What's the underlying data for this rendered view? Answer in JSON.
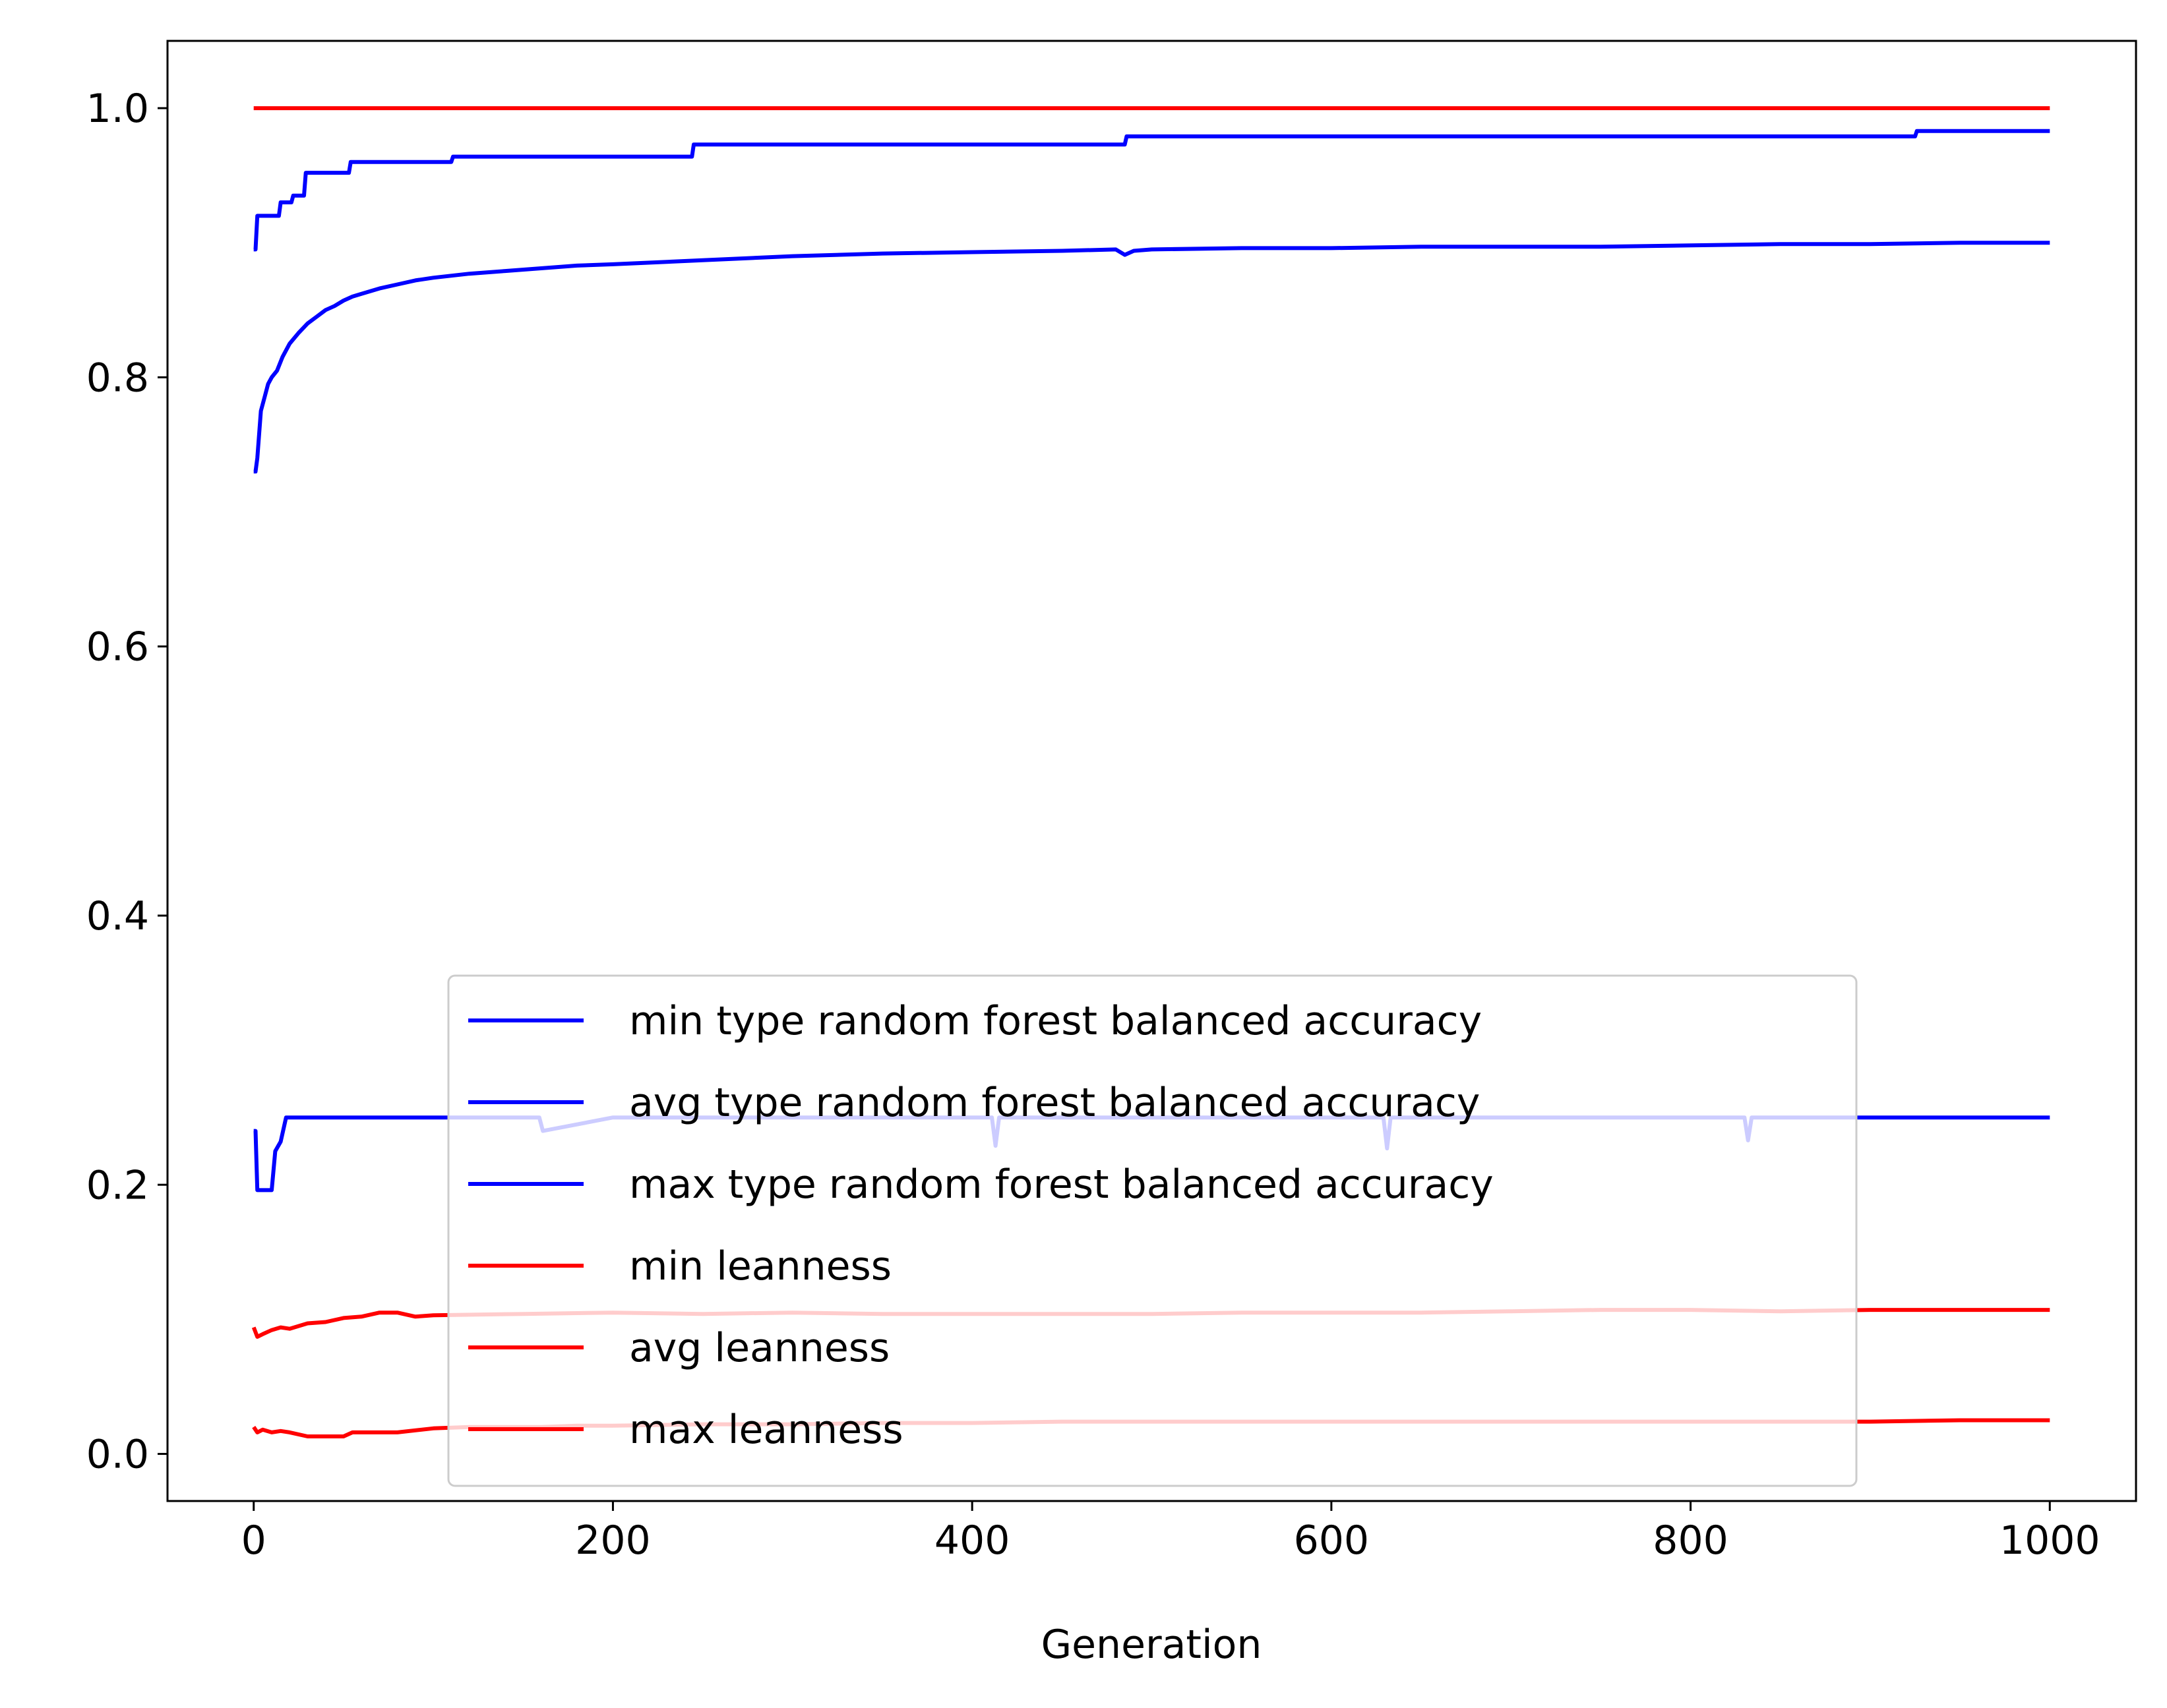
{
  "chart_data": {
    "type": "line",
    "title": "",
    "xlabel": "Generation",
    "ylabel": "",
    "xlim": [
      -48,
      1048
    ],
    "ylim": [
      -0.035,
      1.05
    ],
    "xticks": [
      0,
      200,
      400,
      600,
      800,
      1000
    ],
    "xtick_labels": [
      "0",
      "200",
      "400",
      "600",
      "800",
      "1000"
    ],
    "yticks": [
      0.0,
      0.2,
      0.4,
      0.6,
      0.8,
      1.0
    ],
    "ytick_labels": [
      "0.0",
      "0.2",
      "0.4",
      "0.6",
      "0.8",
      "1.0"
    ],
    "grid": false,
    "legend_position": "lower center",
    "series": [
      {
        "name": "min type random forest balanced accuracy",
        "color": "#0000ff",
        "x": [
          0,
          1,
          2,
          3,
          5,
          10,
          12,
          15,
          18,
          30,
          60,
          100,
          150,
          159,
          161,
          200,
          300,
          409,
          411,
          413,
          415,
          500,
          600,
          627,
          629,
          631,
          633,
          700,
          800,
          828,
          830,
          832,
          834,
          900,
          1000
        ],
        "y": [
          0.24,
          0.24,
          0.196,
          0.196,
          0.196,
          0.196,
          0.225,
          0.232,
          0.25,
          0.25,
          0.25,
          0.25,
          0.25,
          0.25,
          0.24,
          0.25,
          0.25,
          0.25,
          0.25,
          0.229,
          0.25,
          0.25,
          0.25,
          0.25,
          0.25,
          0.227,
          0.25,
          0.25,
          0.25,
          0.25,
          0.25,
          0.233,
          0.25,
          0.25,
          0.25
        ]
      },
      {
        "name": "avg type random forest balanced accuracy",
        "color": "#0000ff",
        "x": [
          0,
          1,
          2,
          4,
          6,
          8,
          10,
          13,
          16,
          20,
          25,
          30,
          35,
          40,
          45,
          50,
          55,
          60,
          70,
          80,
          90,
          100,
          120,
          140,
          160,
          180,
          200,
          250,
          300,
          350,
          400,
          450,
          480,
          485,
          490,
          500,
          550,
          600,
          650,
          700,
          750,
          800,
          850,
          900,
          950,
          1000
        ],
        "y": [
          0.73,
          0.73,
          0.74,
          0.775,
          0.785,
          0.795,
          0.8,
          0.805,
          0.815,
          0.825,
          0.833,
          0.84,
          0.845,
          0.85,
          0.853,
          0.857,
          0.86,
          0.862,
          0.866,
          0.869,
          0.872,
          0.874,
          0.877,
          0.879,
          0.881,
          0.883,
          0.884,
          0.887,
          0.89,
          0.892,
          0.893,
          0.894,
          0.895,
          0.891,
          0.894,
          0.895,
          0.896,
          0.896,
          0.897,
          0.897,
          0.897,
          0.898,
          0.899,
          0.899,
          0.9,
          0.9
        ]
      },
      {
        "name": "max type random forest balanced accuracy",
        "color": "#0000ff",
        "x": [
          0,
          1,
          2,
          3,
          14,
          15,
          21,
          22,
          28,
          29,
          53,
          54,
          110,
          111,
          244,
          245,
          485,
          486,
          925,
          926,
          1000
        ],
        "y": [
          0.895,
          0.895,
          0.92,
          0.92,
          0.92,
          0.93,
          0.93,
          0.935,
          0.935,
          0.952,
          0.952,
          0.96,
          0.96,
          0.964,
          0.964,
          0.973,
          0.973,
          0.979,
          0.979,
          0.983,
          0.983
        ]
      },
      {
        "name": "min leanness",
        "color": "#ff0000",
        "x": [
          0,
          2,
          5,
          10,
          15,
          20,
          30,
          40,
          50,
          55,
          60,
          80,
          100,
          120,
          140,
          160,
          180,
          200,
          250,
          300,
          350,
          400,
          450,
          500,
          600,
          700,
          800,
          900,
          950,
          1000
        ],
        "y": [
          0.02,
          0.016,
          0.018,
          0.016,
          0.017,
          0.016,
          0.013,
          0.013,
          0.013,
          0.016,
          0.016,
          0.016,
          0.019,
          0.02,
          0.02,
          0.02,
          0.021,
          0.021,
          0.022,
          0.022,
          0.023,
          0.023,
          0.024,
          0.024,
          0.024,
          0.024,
          0.024,
          0.024,
          0.025,
          0.025
        ]
      },
      {
        "name": "avg leanness",
        "color": "#ff0000",
        "x": [
          0,
          2,
          5,
          10,
          15,
          20,
          30,
          40,
          50,
          60,
          70,
          80,
          90,
          100,
          150,
          200,
          250,
          300,
          350,
          400,
          450,
          500,
          550,
          600,
          650,
          700,
          750,
          800,
          850,
          900,
          950,
          1000
        ],
        "y": [
          0.094,
          0.087,
          0.089,
          0.092,
          0.094,
          0.093,
          0.097,
          0.098,
          0.101,
          0.102,
          0.105,
          0.105,
          0.102,
          0.103,
          0.104,
          0.105,
          0.104,
          0.105,
          0.104,
          0.104,
          0.104,
          0.104,
          0.105,
          0.105,
          0.105,
          0.106,
          0.107,
          0.107,
          0.106,
          0.107,
          0.107,
          0.107
        ]
      },
      {
        "name": "max leanness",
        "color": "#ff0000",
        "x": [
          0,
          1000
        ],
        "y": [
          1.0,
          1.0
        ]
      }
    ]
  }
}
